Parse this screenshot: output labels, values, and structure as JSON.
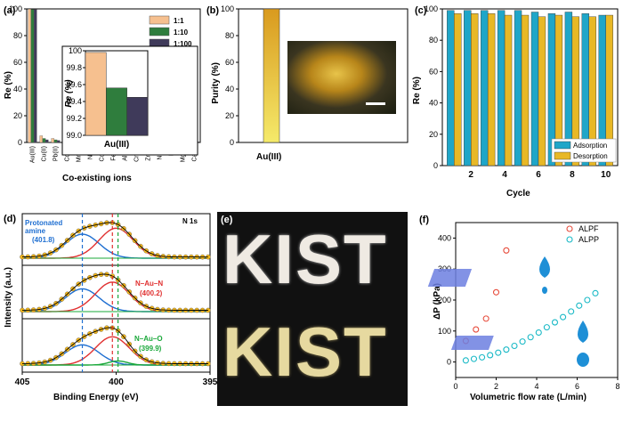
{
  "panels": {
    "a": {
      "label": "(a)",
      "ylabel": "Re (%)",
      "xlabel": "Co-existing ions",
      "ions": [
        "Au(III)",
        "Cu(II)",
        "Pb(II)",
        "Cd(II)",
        "Mn(II)",
        "Ni(II)",
        "Co(II)",
        "Fe(II)",
        "Al(III)",
        "Cr(III)",
        "Zn(II)",
        "Na(I)",
        "K(I)",
        "Mg(II)",
        "Ca(II)"
      ],
      "yticks": [
        "0",
        "20",
        "40",
        "60",
        "80",
        "100"
      ],
      "legend": [
        "1:1",
        "1:10",
        "1:100"
      ],
      "inset": {
        "ylabel": "Re (%)",
        "xlabel": "Au(III)",
        "yticks": [
          "99.0",
          "99.2",
          "99.4",
          "99.6",
          "99.8",
          "100"
        ]
      }
    },
    "b": {
      "label": "(b)",
      "ylabel": "Purity (%)",
      "xlabel": "Au(III)",
      "yticks": [
        "0",
        "20",
        "40",
        "60",
        "80",
        "100"
      ]
    },
    "c": {
      "label": "(c)",
      "ylabel": "Re (%)",
      "xlabel": "Cycle",
      "yticks": [
        "0",
        "20",
        "40",
        "60",
        "80",
        "100"
      ],
      "xticks": [
        "2",
        "4",
        "6",
        "8",
        "10"
      ],
      "legend": [
        "Adsorption",
        "Desorption"
      ]
    },
    "d": {
      "label": "(d)",
      "ylabel": "Intensity (a.u.)",
      "xlabel": "Binding Energy (eV)",
      "xticks": [
        "405",
        "400",
        "395"
      ],
      "tag": "N 1s",
      "ann1": "Protonated amine",
      "ann1v": "(401.8)",
      "ann2": "N–Au–N",
      "ann2v": "(400.2)",
      "ann3": "N–Au–O",
      "ann3v": "(399.9)"
    },
    "e": {
      "label": "(e)",
      "word_top": "KIST",
      "word_bottom": "KIST"
    },
    "f": {
      "label": "(f)",
      "ylabel": "ΔP (kPa)",
      "xlabel": "Volumetric flow rate (L/min)",
      "yticks": [
        "0",
        "100",
        "200",
        "300",
        "400"
      ],
      "xticks": [
        "0",
        "2",
        "4",
        "6",
        "8"
      ],
      "legend": [
        "ALPF",
        "ALPP"
      ]
    }
  },
  "chart_data": [
    {
      "type": "bar",
      "panel": "a",
      "ylim": [
        0,
        100
      ],
      "categories": [
        "Au(III)",
        "Cu(II)",
        "Pb(II)",
        "Cd(II)",
        "Mn(II)",
        "Ni(II)",
        "Co(II)",
        "Fe(II)",
        "Al(III)",
        "Cr(III)",
        "Zn(II)",
        "Na(I)",
        "K(I)",
        "Mg(II)",
        "Ca(II)"
      ],
      "series": [
        {
          "name": "1:1",
          "values": [
            99.9,
            5,
            3,
            2,
            1.5,
            1.5,
            1.5,
            2,
            1,
            1.5,
            2,
            1.5,
            1.5,
            1,
            1
          ]
        },
        {
          "name": "1:10",
          "values": [
            99.6,
            3,
            2,
            1.5,
            1,
            1,
            1,
            1.5,
            1,
            1,
            1.5,
            1,
            1,
            1,
            0.5
          ]
        },
        {
          "name": "1:100",
          "values": [
            99.5,
            2,
            1.5,
            1,
            1,
            1,
            1,
            1,
            0.5,
            1,
            1,
            1,
            1,
            0.5,
            0.5
          ]
        }
      ]
    },
    {
      "type": "bar",
      "panel": "a-inset",
      "ylim": [
        99.0,
        100
      ],
      "categories": [
        "Au(III)"
      ],
      "series": [
        {
          "name": "1:1",
          "values": [
            99.98
          ]
        },
        {
          "name": "1:10",
          "values": [
            99.56
          ]
        },
        {
          "name": "1:100",
          "values": [
            99.45
          ]
        }
      ]
    },
    {
      "type": "bar",
      "panel": "b",
      "ylim": [
        0,
        100
      ],
      "categories": [
        "Au(III)"
      ],
      "values": [
        100
      ]
    },
    {
      "type": "bar",
      "panel": "c",
      "ylim": [
        0,
        100
      ],
      "x": [
        1,
        2,
        3,
        4,
        5,
        6,
        7,
        8,
        9,
        10
      ],
      "series": [
        {
          "name": "Adsorption",
          "values": [
            99,
            99,
            99,
            99,
            99,
            98,
            97,
            98,
            97,
            96
          ]
        },
        {
          "name": "Desorption",
          "values": [
            97,
            97,
            97,
            96,
            96,
            95,
            96,
            95,
            95,
            96
          ]
        }
      ]
    },
    {
      "type": "scatter",
      "panel": "f",
      "xlim": [
        0,
        8
      ],
      "ylim": [
        -50,
        450
      ],
      "series": [
        {
          "name": "ALPF",
          "x": [
            0.5,
            1,
            1.5,
            2,
            2.5
          ],
          "y": [
            68,
            105,
            140,
            225,
            360
          ]
        },
        {
          "name": "ALPP",
          "x": [
            0.5,
            0.9,
            1.3,
            1.7,
            2.1,
            2.5,
            2.9,
            3.3,
            3.7,
            4.1,
            4.5,
            4.9,
            5.3,
            5.7,
            6.1,
            6.5,
            6.9
          ],
          "y": [
            5,
            10,
            15,
            22,
            30,
            40,
            52,
            66,
            80,
            95,
            112,
            128,
            145,
            163,
            182,
            200,
            222
          ]
        }
      ]
    }
  ]
}
